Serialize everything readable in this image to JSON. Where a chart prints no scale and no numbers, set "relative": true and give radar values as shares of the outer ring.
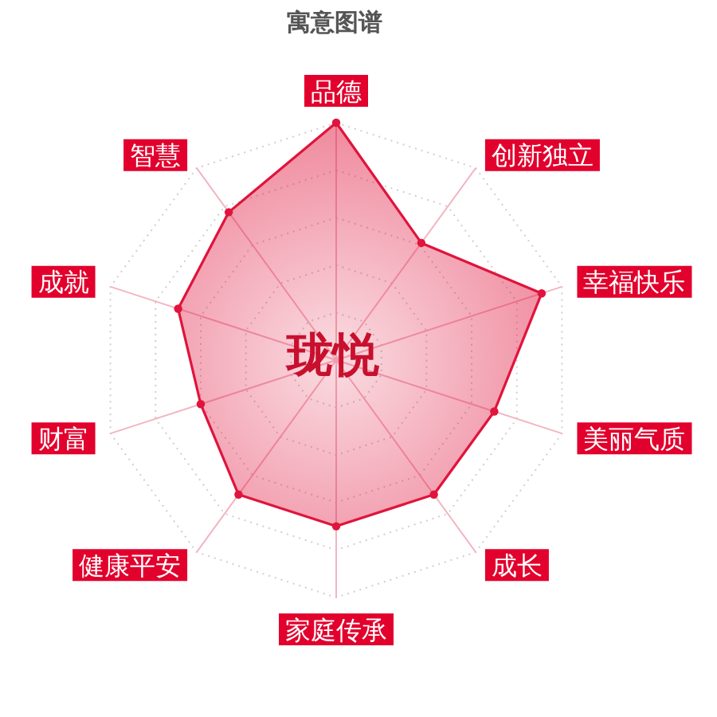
{
  "chart_data": {
    "type": "radar",
    "title": "寓意图谱",
    "categories": [
      "品德",
      "创新独立",
      "幸福快乐",
      "美丽气质",
      "成长",
      "家庭传承",
      "健康平安",
      "财富",
      "成就",
      "智慧"
    ],
    "relative": true,
    "grid": true,
    "marker": "circle",
    "series": [
      {
        "color": "#e0143c",
        "values": [
          1.0,
          0.61,
          0.91,
          0.7,
          0.7,
          0.7,
          0.7,
          0.6,
          0.7,
          0.77
        ]
      }
    ],
    "annotations": [
      "珑悦"
    ]
  }
}
